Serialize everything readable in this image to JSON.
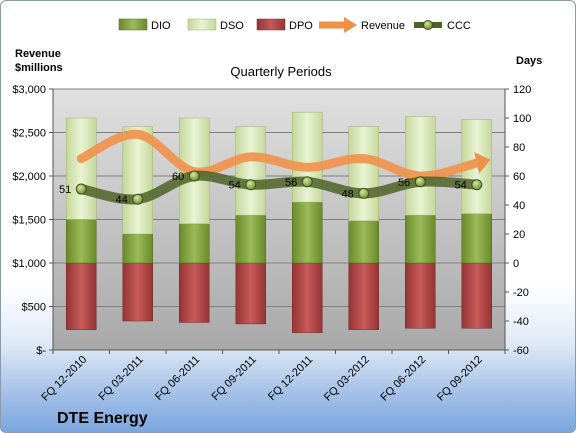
{
  "chart_data": {
    "type": "bar",
    "title": "Quarterly Periods",
    "company": "DTE Energy",
    "left_axis_label_line1": "Revenue",
    "left_axis_label_line2": "$millions",
    "right_axis_label": "Days",
    "categories": [
      "FQ 12-2010",
      "FQ 03-2011",
      "FQ 06-2011",
      "FQ 09-2011",
      "FQ 12-2011",
      "FQ 03-2012",
      "FQ 06-2012",
      "FQ 09-2012"
    ],
    "left_ylim": [
      0,
      3000
    ],
    "left_ticks": [
      0,
      500,
      1000,
      1500,
      2000,
      2500,
      3000
    ],
    "left_tick_labels": [
      "$-",
      "$500",
      "$1,000",
      "$1,500",
      "$2,000",
      "$2,500",
      "$3,000"
    ],
    "right_ylim": [
      -60,
      120
    ],
    "right_ticks": [
      -60,
      -40,
      -20,
      0,
      20,
      40,
      60,
      80,
      100,
      120
    ],
    "right_tick_labels": [
      "-60",
      "-40",
      "-20",
      "0",
      "20",
      "40",
      "60",
      "80",
      "100",
      "120"
    ],
    "series": [
      {
        "name": "DIO",
        "axis": "right",
        "kind": "stacked-bar",
        "values": [
          30,
          20,
          27,
          33,
          42,
          29,
          33,
          34
        ]
      },
      {
        "name": "DSO",
        "axis": "right",
        "kind": "stacked-bar",
        "values": [
          70,
          74,
          73,
          61,
          62,
          65,
          68,
          65
        ]
      },
      {
        "name": "DPO",
        "axis": "right",
        "kind": "negative-bar",
        "values": [
          -46,
          -40,
          -41,
          -42,
          -48,
          -46,
          -45,
          -45
        ]
      },
      {
        "name": "Revenue",
        "axis": "left",
        "kind": "line",
        "values": [
          2200,
          2480,
          2050,
          2220,
          2100,
          2200,
          2000,
          2150
        ]
      },
      {
        "name": "CCC",
        "axis": "right",
        "kind": "line-markers",
        "values": [
          51,
          44,
          60,
          54,
          56,
          48,
          56,
          54
        ]
      }
    ],
    "data_labels": [
      "51",
      "44",
      "60",
      "54",
      "56",
      "48",
      "56",
      "54"
    ],
    "legend": [
      "DIO",
      "DSO",
      "DPO",
      "Revenue",
      "CCC"
    ],
    "legend_position": "top",
    "colors": {
      "DIO": "#7f9f3a",
      "DSO": "#d8e8b0",
      "DPO": "#b84c4c",
      "Revenue": "#ee8f44",
      "CCC": "#556b2f",
      "plot_bg": "#c0c0c0"
    },
    "grid": true
  }
}
